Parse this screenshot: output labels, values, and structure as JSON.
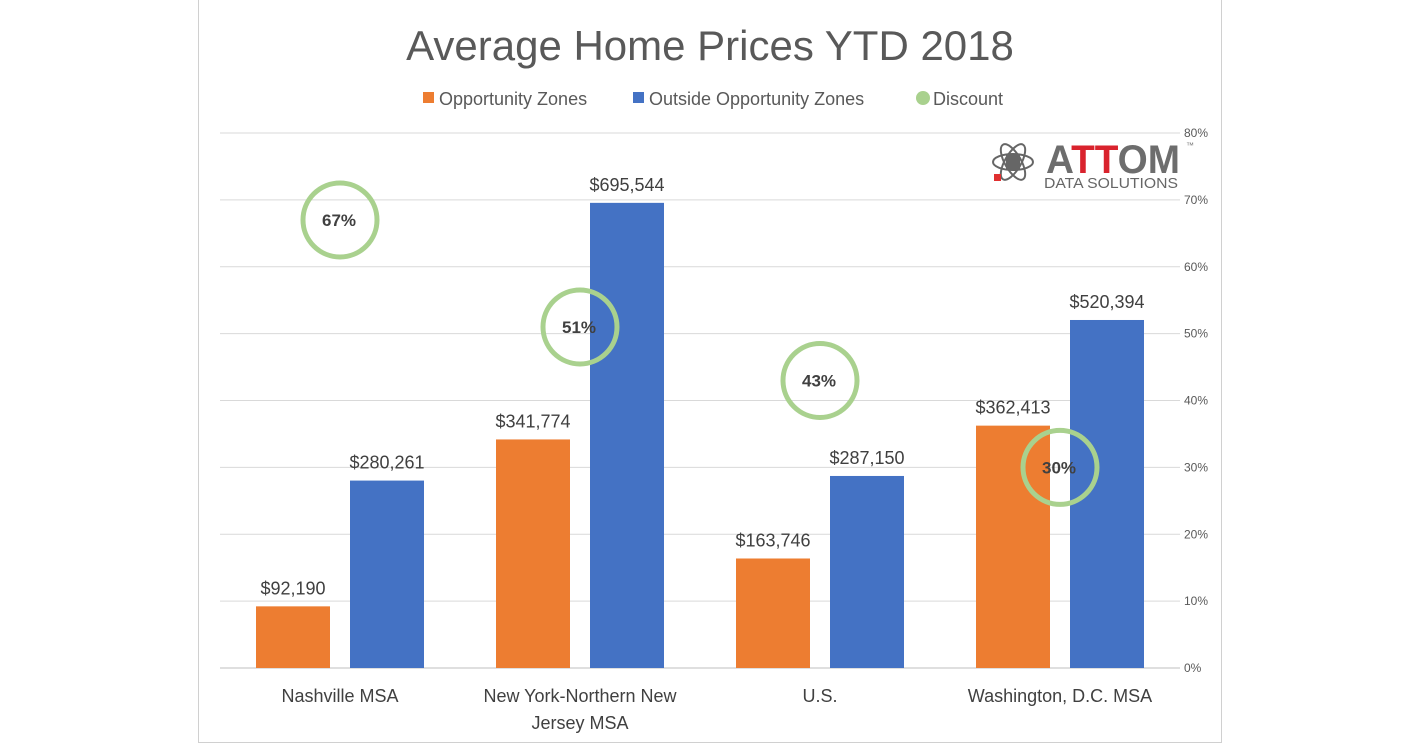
{
  "chart_data": {
    "type": "bar",
    "title": "Average Home Prices YTD 2018",
    "categories": [
      "Nashville MSA",
      "New York-Northern New Jersey MSA",
      "U.S.",
      "Washington, D.C. MSA"
    ],
    "category_lines": [
      [
        "Nashville MSA"
      ],
      [
        "New York-Northern New",
        "Jersey MSA"
      ],
      [
        "U.S."
      ],
      [
        "Washington, D.C. MSA"
      ]
    ],
    "series": [
      {
        "name": "Opportunity Zones",
        "type": "bar",
        "axis": "primary",
        "color": "#ed7d31",
        "values": [
          92190,
          341774,
          163746,
          362413
        ],
        "labels": [
          "$92,190",
          "$341,774",
          "$163,746",
          "$362,413"
        ]
      },
      {
        "name": "Outside Opportunity Zones",
        "type": "bar",
        "axis": "primary",
        "color": "#4472c4",
        "values": [
          280261,
          695544,
          287150,
          520394
        ],
        "labels": [
          "$280,261",
          "$695,544",
          "$287,150",
          "$520,394"
        ]
      },
      {
        "name": "Discount",
        "type": "scatter",
        "axis": "secondary",
        "color": "#a9d18e",
        "values": [
          67,
          51,
          43,
          30
        ],
        "labels": [
          "67%",
          "51%",
          "43%",
          "30%"
        ]
      }
    ],
    "primary_ylim": [
      0,
      800000
    ],
    "secondary_ylim": [
      0,
      80
    ],
    "secondary_ticks": [
      "0%",
      "10%",
      "20%",
      "30%",
      "40%",
      "50%",
      "60%",
      "70%",
      "80%"
    ],
    "grid": true,
    "legend": "top"
  },
  "logo": {
    "brand": "ATTOM",
    "tagline": "DATA SOLUTIONS",
    "tm": "™"
  }
}
